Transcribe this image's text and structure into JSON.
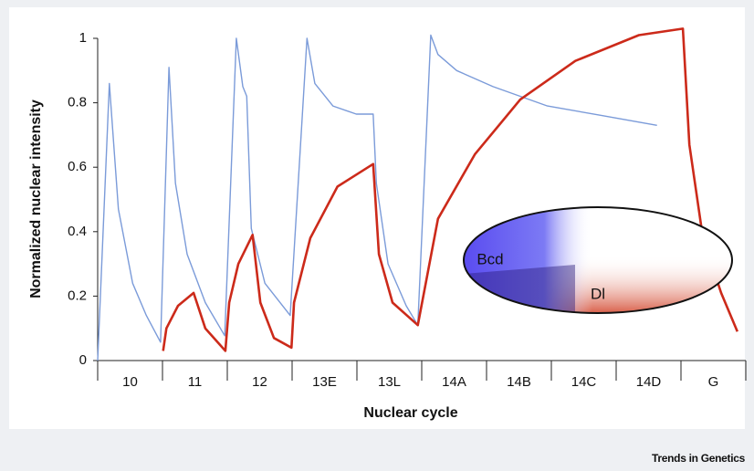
{
  "chart_data": {
    "type": "line",
    "x_label": "Nuclear cycle",
    "y_label": "Normalized nuclear intensity",
    "categories": [
      "10",
      "11",
      "12",
      "13E",
      "13L",
      "14A",
      "14B",
      "14C",
      "14D",
      "G"
    ],
    "xlim": [
      0,
      10
    ],
    "ylim": [
      0,
      1
    ],
    "yticks": [
      0,
      0.2,
      0.4,
      0.6,
      0.8,
      1
    ],
    "series": [
      {
        "name": "Bcd",
        "color": "#7b9bd9",
        "x": [
          0,
          0.18,
          0.32,
          0.54,
          0.75,
          0.97,
          1.1,
          1.2,
          1.38,
          1.66,
          1.96,
          2.14,
          2.24,
          2.3,
          2.37,
          2.58,
          2.97,
          3.23,
          3.35,
          3.63,
          3.99,
          4.25,
          4.3,
          4.48,
          4.76,
          4.94,
          5.14,
          5.25,
          5.54,
          6.1,
          6.94,
          7.79,
          8.63
        ],
        "values": [
          0,
          0.86,
          0.47,
          0.24,
          0.14,
          0.057,
          0.91,
          0.55,
          0.33,
          0.18,
          0.077,
          1.0,
          0.85,
          0.82,
          0.41,
          0.24,
          0.14,
          1.0,
          0.86,
          0.79,
          0.765,
          0.765,
          0.55,
          0.3,
          0.17,
          0.11,
          1.01,
          0.95,
          0.9,
          0.85,
          0.79,
          0.76,
          0.73
        ]
      },
      {
        "name": "Dl",
        "color": "#cc2a1a",
        "x": [
          1.01,
          1.06,
          1.24,
          1.48,
          1.66,
          1.97,
          2.03,
          2.17,
          2.39,
          2.51,
          2.72,
          2.99,
          3.03,
          3.28,
          3.7,
          4.25,
          4.34,
          4.55,
          4.94,
          5.25,
          5.82,
          6.52,
          7.37,
          8.35,
          9.03,
          9.13,
          9.34,
          9.62,
          9.87
        ],
        "values": [
          0.03,
          0.1,
          0.17,
          0.21,
          0.1,
          0.03,
          0.18,
          0.3,
          0.39,
          0.18,
          0.07,
          0.04,
          0.18,
          0.38,
          0.54,
          0.61,
          0.33,
          0.18,
          0.11,
          0.44,
          0.64,
          0.81,
          0.93,
          1.01,
          1.03,
          0.67,
          0.38,
          0.21,
          0.09
        ]
      }
    ],
    "source": "Trends in Genetics"
  }
}
